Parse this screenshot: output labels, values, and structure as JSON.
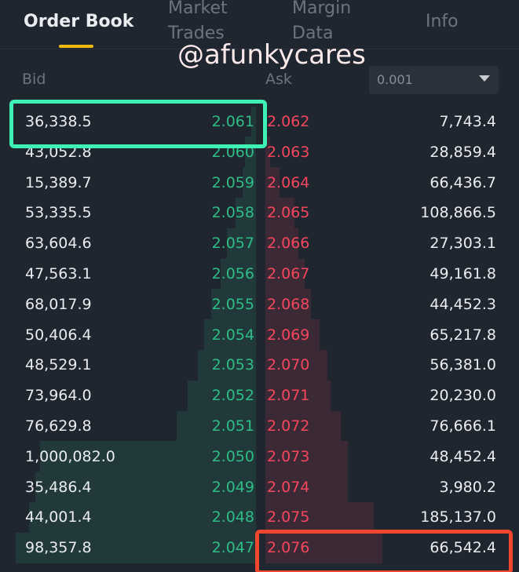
{
  "tabs": [
    "Order Book",
    "Market Trades",
    "Margin Data",
    "Info"
  ],
  "watermark": "@afunkycares",
  "headers": {
    "bid": "Bid",
    "ask": "Ask"
  },
  "precision": "0.001",
  "rows": [
    {
      "bid_qty": "36,338.5",
      "bid_price": "2.061",
      "ask_price": "2.062",
      "ask_qty": "7,743.4"
    },
    {
      "bid_qty": "43,052.8",
      "bid_price": "2.060",
      "ask_price": "2.063",
      "ask_qty": "28,859.4"
    },
    {
      "bid_qty": "15,389.7",
      "bid_price": "2.059",
      "ask_price": "2.064",
      "ask_qty": "66,436.7"
    },
    {
      "bid_qty": "53,335.5",
      "bid_price": "2.058",
      "ask_price": "2.065",
      "ask_qty": "108,866.5"
    },
    {
      "bid_qty": "63,604.6",
      "bid_price": "2.057",
      "ask_price": "2.066",
      "ask_qty": "27,303.1"
    },
    {
      "bid_qty": "47,563.1",
      "bid_price": "2.056",
      "ask_price": "2.067",
      "ask_qty": "49,161.8"
    },
    {
      "bid_qty": "68,017.9",
      "bid_price": "2.055",
      "ask_price": "2.068",
      "ask_qty": "44,452.3"
    },
    {
      "bid_qty": "50,406.4",
      "bid_price": "2.054",
      "ask_price": "2.069",
      "ask_qty": "65,217.8"
    },
    {
      "bid_qty": "48,529.1",
      "bid_price": "2.053",
      "ask_price": "2.070",
      "ask_qty": "56,381.0"
    },
    {
      "bid_qty": "73,964.0",
      "bid_price": "2.052",
      "ask_price": "2.071",
      "ask_qty": "20,230.0"
    },
    {
      "bid_qty": "76,629.8",
      "bid_price": "2.051",
      "ask_price": "2.072",
      "ask_qty": "76,666.1"
    },
    {
      "bid_qty": "1,000,082.0",
      "bid_price": "2.050",
      "ask_price": "2.073",
      "ask_qty": "48,452.4"
    },
    {
      "bid_qty": "35,486.4",
      "bid_price": "2.049",
      "ask_price": "2.074",
      "ask_qty": "3,980.2"
    },
    {
      "bid_qty": "44,001.4",
      "bid_price": "2.048",
      "ask_price": "2.075",
      "ask_qty": "185,137.0"
    },
    {
      "bid_qty": "98,357.8",
      "bid_price": "2.047",
      "ask_price": "2.076",
      "ask_qty": "66,542.4"
    }
  ]
}
